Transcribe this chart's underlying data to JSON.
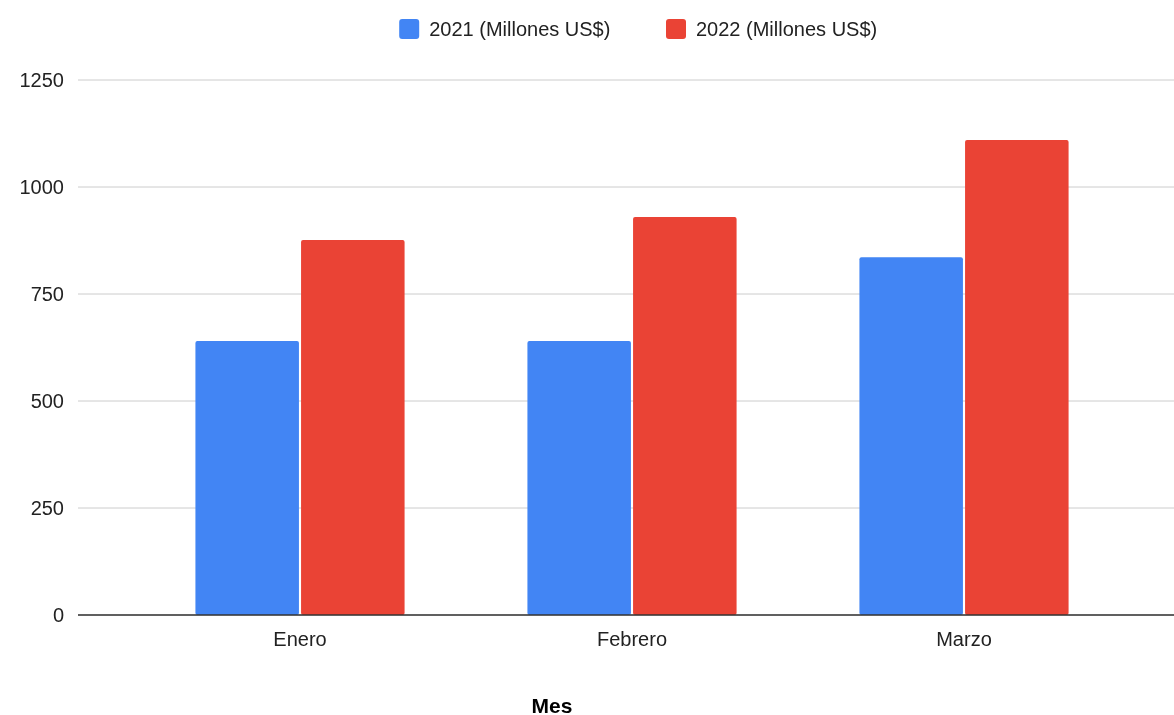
{
  "chart_data": {
    "type": "bar",
    "xlabel": "Mes",
    "categories": [
      "Enero",
      "Febrero",
      "Marzo"
    ],
    "series": [
      {
        "name": "2021 (Millones US$)",
        "color": "#4285f4",
        "values": [
          640,
          640,
          836
        ]
      },
      {
        "name": "2022 (Millones US$)",
        "color": "#ea4335",
        "values": [
          876,
          930,
          1110
        ]
      }
    ],
    "ylim": [
      0,
      1250
    ],
    "yticks": [
      0,
      250,
      500,
      750,
      1000,
      1250
    ],
    "grid": "y",
    "legend": "top"
  }
}
